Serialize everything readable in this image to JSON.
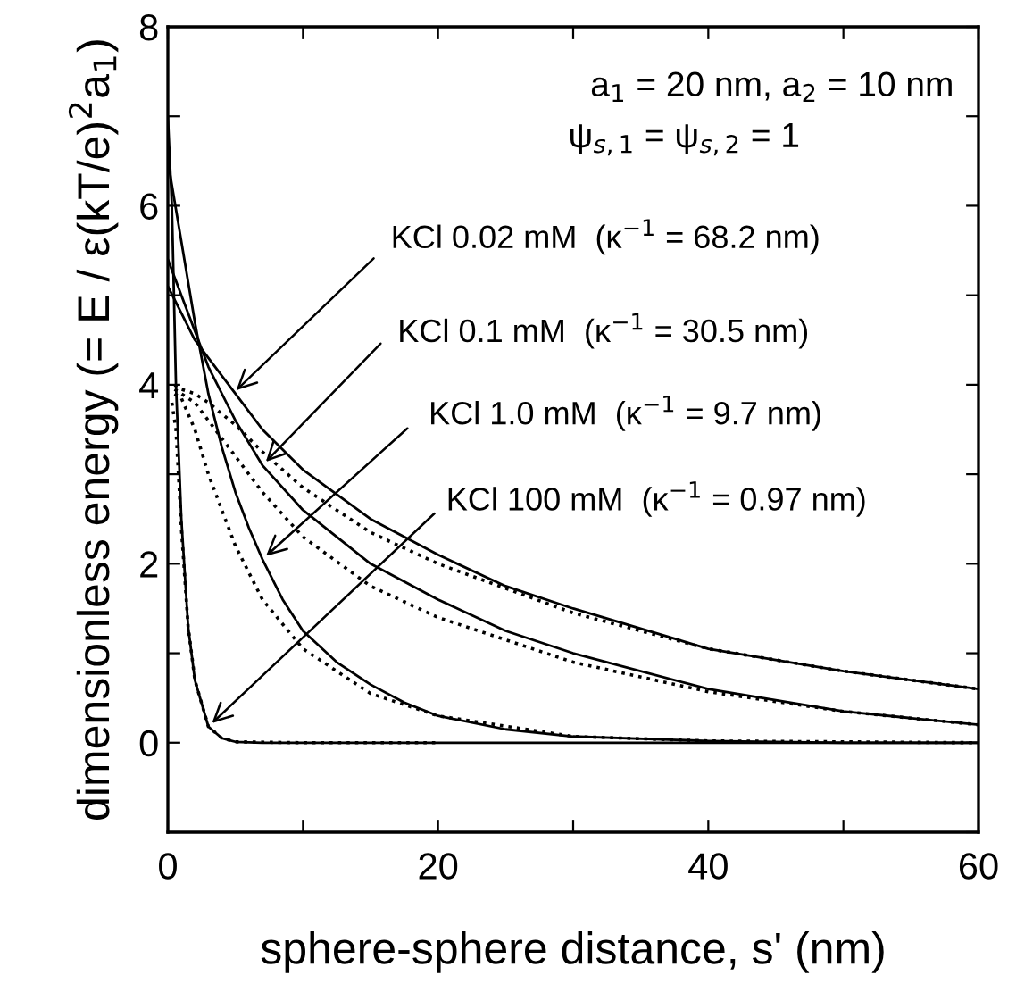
{
  "chart_data": {
    "type": "line",
    "xlabel": "sphere-sphere distance, s' (nm)",
    "ylabel": "dimensionless energy (= E / ε(kT/e)$^{2}$a$_{1}$)",
    "xlim": [
      0,
      60
    ],
    "ylim": [
      -1,
      8
    ],
    "xticks": [
      0,
      {
        "value": 10,
        "label": null
      },
      20,
      {
        "value": 30,
        "label": null
      },
      40,
      {
        "value": 50,
        "label": null
      },
      60
    ],
    "yticks": [
      {
        "value": -1,
        "label": null
      },
      0,
      {
        "value": 1,
        "label": null
      },
      2,
      {
        "value": 3,
        "label": null
      },
      4,
      {
        "value": 5,
        "label": null
      },
      6,
      {
        "value": 7,
        "label": null
      },
      8
    ],
    "grid": false,
    "marker": "none",
    "series": [
      {
        "color": "#000000",
        "line_style": "solid",
        "x": [
          0,
          1,
          2,
          3,
          5,
          7,
          10,
          15,
          20,
          25,
          30,
          40,
          50,
          60
        ],
        "values": [
          5.1,
          4.8,
          4.5,
          4.3,
          3.9,
          3.5,
          3.05,
          2.5,
          2.1,
          1.75,
          1.5,
          1.05,
          0.8,
          0.6
        ]
      },
      {
        "color": "#000000",
        "line_style": "solid",
        "x": [
          0,
          1,
          2,
          3,
          5,
          7,
          10,
          15,
          20,
          25,
          30,
          40,
          50,
          60
        ],
        "values": [
          5.4,
          5.0,
          4.6,
          4.2,
          3.6,
          3.1,
          2.6,
          2.0,
          1.6,
          1.25,
          1.0,
          0.6,
          0.35,
          0.2
        ]
      },
      {
        "color": "#000000",
        "line_style": "solid",
        "x": [
          0,
          1,
          2,
          3,
          4,
          5,
          6,
          7,
          8.5,
          10,
          12.5,
          15,
          17.5,
          20,
          25,
          30,
          40,
          50,
          60
        ],
        "values": [
          6.5,
          5.6,
          4.7,
          3.9,
          3.3,
          2.8,
          2.4,
          2.05,
          1.6,
          1.25,
          0.9,
          0.65,
          0.45,
          0.3,
          0.15,
          0.07,
          0.02,
          0,
          0
        ]
      },
      {
        "color": "#000000",
        "line_style": "solid",
        "x": [
          0,
          0.3,
          0.6,
          1,
          1.5,
          2,
          3,
          4,
          5,
          7,
          10,
          20,
          40,
          60
        ],
        "values": [
          7.0,
          6.0,
          4.0,
          2.5,
          1.3,
          0.7,
          0.18,
          0.05,
          0.01,
          0,
          0,
          0,
          0,
          0
        ]
      },
      {
        "color": "#000000",
        "line_style": "dotted",
        "x": [
          0.5,
          1,
          2,
          3,
          5,
          7,
          10,
          15,
          20,
          30,
          40,
          50,
          60
        ],
        "values": [
          4.0,
          3.95,
          3.9,
          3.8,
          3.55,
          3.25,
          2.85,
          2.35,
          2.0,
          1.45,
          1.05,
          0.8,
          0.6
        ]
      },
      {
        "color": "#000000",
        "line_style": "dotted",
        "x": [
          0.5,
          1,
          2,
          3,
          5,
          7,
          10,
          15,
          20,
          30,
          40,
          50,
          60
        ],
        "values": [
          3.95,
          3.9,
          3.8,
          3.6,
          3.2,
          2.8,
          2.3,
          1.75,
          1.4,
          0.9,
          0.57,
          0.35,
          0.2
        ]
      },
      {
        "color": "#000000",
        "line_style": "dotted",
        "x": [
          0.5,
          1,
          2,
          3,
          4,
          5,
          7,
          10,
          15,
          20,
          30,
          40,
          60
        ],
        "values": [
          3.9,
          3.85,
          3.5,
          3.0,
          2.6,
          2.2,
          1.6,
          1.05,
          0.55,
          0.3,
          0.07,
          0.02,
          0
        ]
      },
      {
        "color": "#000000",
        "line_style": "dotted",
        "x": [
          0.3,
          0.6,
          1,
          1.5,
          2,
          3,
          4,
          5,
          10,
          20
        ],
        "values": [
          3.8,
          3.5,
          2.4,
          1.3,
          0.7,
          0.18,
          0.05,
          0.01,
          0,
          0
        ]
      }
    ],
    "annotations": [
      "a$_{1}$ = 20 nm, a$_{2}$ = 10 nm",
      "ψ$_{s,1}$ = ψ$_{s,2}$ = 1",
      {
        "text": "KCl 0.02 mM  (κ$^{−1}$ = 68.2 nm)",
        "x": 4.8,
        "y": 3.9
      },
      {
        "text": "KCl 0.1 mM  (κ$^{−1}$ = 30.5 nm)",
        "x": 7,
        "y": 3.1
      },
      {
        "text": "KCl 1.0 mM  (κ$^{−1}$ = 9.7 nm)",
        "x": 7,
        "y": 2.05
      },
      {
        "text": "KCl 100 mM  (κ$^{−1}$ = 0.97 nm)",
        "x": 3,
        "y": 0.18
      }
    ]
  }
}
